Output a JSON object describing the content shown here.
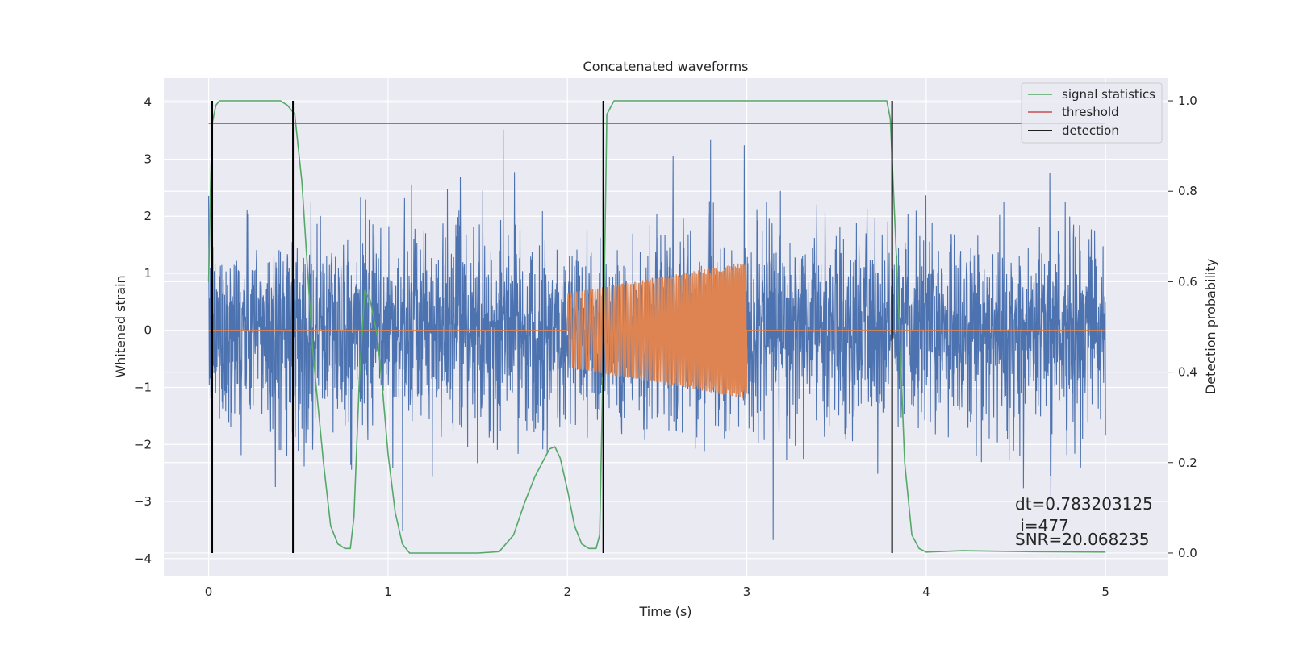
{
  "chart_data": {
    "type": "line",
    "title": "Concatenated waveforms",
    "xlabel": "Time (s)",
    "ylabel": "Whitened strain",
    "y2label": "Detection probability",
    "xlim": [
      -0.25,
      5.35
    ],
    "ylim": [
      -4.3,
      4.42
    ],
    "y2lim": [
      -0.05,
      1.05
    ],
    "xticks": [
      0,
      1,
      2,
      3,
      4,
      5
    ],
    "yticks": [
      -4,
      -3,
      -2,
      -1,
      0,
      1,
      2,
      3,
      4
    ],
    "y2ticks": [
      0.0,
      0.2,
      0.4,
      0.6,
      0.8,
      1.0
    ],
    "xtick_labels": [
      "0",
      "1",
      "2",
      "3",
      "4",
      "5"
    ],
    "ytick_labels": [
      "−4",
      "−3",
      "−2",
      "−1",
      "0",
      "1",
      "2",
      "3",
      "4"
    ],
    "y2tick_labels": [
      "0.0",
      "0.2",
      "0.4",
      "0.6",
      "0.8",
      "1.0"
    ],
    "grid": true,
    "legend_placement": "top-right",
    "legend": [
      "signal statistics",
      "threshold",
      "detection"
    ],
    "colors": {
      "strain": "#4c72b0",
      "injection": "#dd8452",
      "statistic": "#55a868",
      "threshold": "#c44e52",
      "detection": "#000000",
      "axes_bg": "#eaeaf2",
      "grid": "#ffffff"
    },
    "series": [
      {
        "axis": "left",
        "description_style": "noise",
        "x_range": [
          0,
          5
        ],
        "envelope": {
          "typical": 1.4,
          "peak": 3.8,
          "min_peak": -3.9
        }
      },
      {
        "axis": "left",
        "description_style": "chirp",
        "x": [
          0,
          2.0,
          2.0,
          3.0,
          3.0,
          5.0
        ],
        "amplitude": [
          0,
          0,
          0.65,
          1.2,
          0,
          0
        ]
      },
      {
        "name": "signal statistics",
        "axis": "right",
        "x": [
          0.0,
          0.01,
          0.02,
          0.04,
          0.06,
          0.1,
          0.2,
          0.4,
          0.44,
          0.48,
          0.52,
          0.58,
          0.64,
          0.68,
          0.72,
          0.76,
          0.79,
          0.81,
          0.84,
          0.87,
          0.9,
          0.94,
          0.97,
          1.0,
          1.04,
          1.08,
          1.12,
          1.3,
          1.5,
          1.62,
          1.7,
          1.76,
          1.82,
          1.86,
          1.9,
          1.93,
          1.96,
          2.0,
          2.04,
          2.08,
          2.12,
          2.16,
          2.18,
          2.2,
          2.22,
          2.26,
          2.3,
          2.4,
          3.0,
          3.78,
          3.8,
          3.84,
          3.88,
          3.92,
          3.96,
          4.0,
          4.2,
          4.6,
          5.0
        ],
        "values": [
          0.6,
          0.8,
          0.95,
          0.99,
          1.0,
          1.0,
          1.0,
          1.0,
          0.99,
          0.97,
          0.82,
          0.45,
          0.2,
          0.06,
          0.02,
          0.01,
          0.01,
          0.08,
          0.38,
          0.58,
          0.56,
          0.48,
          0.36,
          0.22,
          0.09,
          0.02,
          0.0,
          0.0,
          0.0,
          0.003,
          0.04,
          0.11,
          0.17,
          0.2,
          0.23,
          0.235,
          0.21,
          0.14,
          0.06,
          0.02,
          0.01,
          0.01,
          0.04,
          0.45,
          0.97,
          1.0,
          1.0,
          1.0,
          1.0,
          1.0,
          0.96,
          0.6,
          0.2,
          0.04,
          0.01,
          0.002,
          0.005,
          0.003,
          0.002
        ]
      },
      {
        "name": "threshold",
        "axis": "right",
        "x": [
          0,
          5
        ],
        "values": [
          0.95,
          0.95
        ]
      },
      {
        "name": "detection",
        "axis": "right",
        "vertical_lines_x": [
          0.02,
          0.47,
          2.2,
          3.81
        ],
        "y_range": [
          0.0,
          1.0
        ]
      }
    ],
    "annotations": [
      "dt=0.783203125",
      " i=477",
      "SNR=20.068235"
    ]
  }
}
